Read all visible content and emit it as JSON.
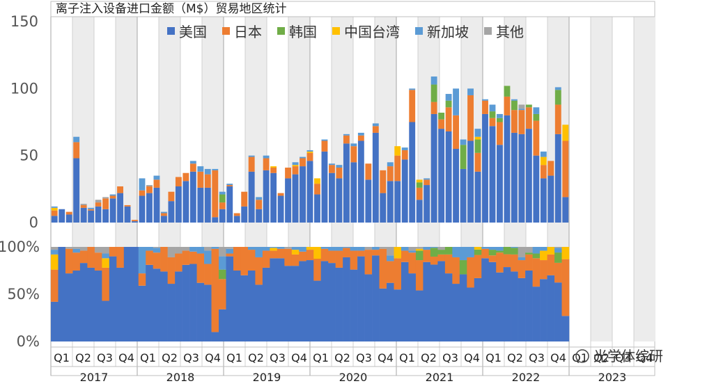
{
  "chart_data": {
    "type": "bar",
    "title": "离子注入设备进口金额（M$）贸易地区统计",
    "watermark": "光学体综研",
    "top_axis": {
      "ylim": [
        0,
        150
      ],
      "ticks": [
        "0",
        "50",
        "100",
        "150"
      ]
    },
    "bottom_axis": {
      "ylim": [
        0,
        100
      ],
      "ticks": [
        "0%",
        "50%",
        "100%"
      ]
    },
    "grid": true,
    "legend_position": "top",
    "quarters": [
      "Q1",
      "Q2",
      "Q3",
      "Q4"
    ],
    "years": [
      "2017",
      "2018",
      "2019",
      "2020",
      "2021",
      "2022",
      "2023"
    ],
    "series": [
      {
        "name": "美国",
        "color": "#4472C4",
        "values": [
          5,
          10,
          6,
          48,
          11,
          9,
          12,
          10,
          18,
          22,
          12,
          1,
          20,
          22,
          26,
          5,
          16,
          27,
          31,
          38,
          26,
          26,
          4,
          10,
          27,
          5,
          12,
          38,
          10,
          39,
          37,
          20,
          33,
          36,
          42,
          46,
          21,
          53,
          37,
          33,
          59,
          45,
          61,
          32,
          67,
          22,
          31,
          31,
          47,
          75,
          17,
          28,
          81,
          70,
          68,
          55,
          40,
          61,
          38,
          81,
          72,
          58,
          80,
          67,
          66,
          70,
          50,
          33,
          35,
          66,
          19
        ],
        "shares": [
          42,
          100,
          72,
          75,
          83,
          78,
          75,
          43,
          90,
          78,
          100,
          100,
          59,
          81,
          77,
          74,
          61,
          74,
          81,
          82,
          62,
          60,
          10,
          34,
          90,
          75,
          70,
          75,
          60,
          78,
          88,
          88,
          80,
          80,
          85,
          86,
          72,
          85,
          83,
          78,
          89,
          76,
          90,
          71,
          91,
          56,
          62,
          55,
          84,
          72,
          54,
          84,
          87,
          85,
          72,
          61,
          71,
          57,
          71,
          88,
          84,
          73,
          81,
          74,
          67,
          75,
          58,
          66,
          70,
          63,
          27
        ]
      },
      {
        "name": "日本",
        "color": "#ED7D31",
        "values": [
          4,
          0,
          2,
          12,
          2,
          1,
          3,
          8,
          2,
          5,
          1,
          1,
          4,
          5,
          6,
          2,
          7,
          7,
          6,
          6,
          12,
          10,
          35,
          5,
          1,
          2,
          11,
          11,
          7,
          9,
          4,
          2,
          8,
          6,
          6,
          6,
          8,
          8,
          6,
          8,
          6,
          12,
          4,
          12,
          5,
          17,
          11,
          19,
          7,
          24,
          9,
          4,
          9,
          7,
          18,
          25,
          0,
          34,
          14,
          10,
          6,
          17,
          14,
          17,
          18,
          16,
          26,
          10,
          11,
          22,
          42
        ],
        "shares": [
          34,
          0,
          26,
          19,
          13,
          22,
          19,
          35,
          10,
          22,
          0,
          0,
          13,
          15,
          17,
          26,
          28,
          19,
          15,
          13,
          31,
          22,
          88,
          32,
          3,
          25,
          30,
          22,
          29,
          18,
          8,
          10,
          18,
          12,
          10,
          11,
          26,
          13,
          13,
          18,
          10,
          20,
          6,
          26,
          6,
          42,
          23,
          33,
          12,
          22,
          32,
          13,
          9,
          7,
          20,
          28,
          0,
          32,
          26,
          10,
          7,
          21,
          14,
          18,
          19,
          17,
          30,
          20,
          22,
          21,
          60
        ]
      },
      {
        "name": "韩国",
        "color": "#70AD47",
        "values": [
          0,
          0,
          0,
          0,
          0,
          0,
          0,
          0,
          0,
          0,
          0,
          0,
          0,
          0,
          0,
          0,
          0,
          0,
          0,
          0,
          0,
          0,
          0,
          6,
          0,
          0,
          0,
          0,
          0,
          0,
          0,
          0,
          0,
          0,
          0,
          0,
          0,
          0,
          0,
          0,
          0,
          0,
          0,
          0,
          0,
          0,
          0,
          0,
          0,
          0,
          4,
          0,
          13,
          5,
          5,
          0,
          18,
          0,
          10,
          0,
          5,
          3,
          8,
          7,
          0,
          2,
          5,
          0,
          0,
          11,
          0
        ],
        "shares": [
          0,
          0,
          0,
          0,
          0,
          0,
          0,
          0,
          0,
          0,
          0,
          0,
          0,
          0,
          0,
          0,
          0,
          0,
          0,
          0,
          0,
          0,
          0,
          10,
          0,
          0,
          0,
          0,
          0,
          0,
          0,
          0,
          0,
          0,
          0,
          0,
          0,
          0,
          0,
          0,
          0,
          0,
          0,
          0,
          0,
          0,
          0,
          0,
          0,
          0,
          10,
          0,
          10,
          5,
          8,
          0,
          15,
          0,
          6,
          0,
          6,
          2,
          8,
          7,
          0,
          2,
          5,
          0,
          0,
          11,
          0
        ]
      },
      {
        "name": "中国台湾",
        "color": "#FFC000",
        "values": [
          2,
          0,
          0,
          0,
          0,
          0,
          0,
          0,
          0,
          0,
          0,
          0,
          0,
          0,
          0,
          0,
          0,
          0,
          0,
          0,
          0,
          0,
          0,
          0,
          0,
          0,
          0,
          0,
          0,
          0,
          1,
          0,
          0,
          1,
          0,
          1,
          4,
          0,
          0,
          0,
          0,
          0,
          0,
          0,
          0,
          0,
          0,
          7,
          0,
          0,
          2,
          0,
          0,
          0,
          0,
          0,
          0,
          0,
          2,
          0,
          0,
          0,
          0,
          0,
          0,
          0,
          0,
          6,
          0,
          0,
          12
        ],
        "shares": [
          16,
          0,
          0,
          0,
          0,
          0,
          0,
          10,
          0,
          0,
          0,
          0,
          0,
          0,
          0,
          0,
          0,
          0,
          0,
          0,
          0,
          0,
          0,
          0,
          0,
          0,
          0,
          0,
          0,
          0,
          3,
          0,
          0,
          5,
          0,
          3,
          14,
          0,
          0,
          0,
          0,
          0,
          0,
          0,
          0,
          0,
          0,
          12,
          0,
          0,
          2,
          0,
          0,
          0,
          0,
          0,
          0,
          0,
          3,
          0,
          0,
          0,
          0,
          0,
          0,
          0,
          0,
          10,
          8,
          0,
          13
        ]
      },
      {
        "name": "新加坡",
        "color": "#5B9BD5",
        "values": [
          1,
          0,
          0,
          4,
          0,
          1,
          0,
          0,
          1,
          0,
          0,
          0,
          9,
          0,
          3,
          1,
          0,
          0,
          0,
          2,
          4,
          4,
          1,
          2,
          1,
          0,
          0,
          1,
          2,
          2,
          0,
          0,
          0,
          2,
          1,
          1,
          0,
          1,
          1,
          2,
          1,
          2,
          2,
          0,
          2,
          0,
          3,
          0,
          2,
          1,
          0,
          1,
          6,
          0,
          5,
          20,
          4,
          5,
          6,
          1,
          5,
          3,
          0,
          1,
          1,
          0,
          5,
          4,
          0,
          2,
          0
        ],
        "shares": [
          5,
          0,
          0,
          4,
          0,
          0,
          0,
          5,
          0,
          0,
          0,
          0,
          28,
          4,
          5,
          0,
          0,
          0,
          0,
          5,
          7,
          14,
          2,
          14,
          5,
          0,
          0,
          3,
          11,
          4,
          1,
          2,
          0,
          3,
          5,
          0,
          0,
          2,
          4,
          4,
          1,
          4,
          4,
          0,
          3,
          0,
          6,
          0,
          4,
          2,
          0,
          3,
          1,
          0,
          0,
          11,
          14,
          11,
          0,
          2,
          3,
          4,
          0,
          1,
          3,
          0,
          7,
          4,
          0,
          5,
          0
        ]
      },
      {
        "name": "其他",
        "color": "#A5A5A5",
        "values": [
          0,
          0,
          0,
          0,
          1,
          0,
          2,
          1,
          0,
          0,
          0,
          0,
          0,
          1,
          0,
          0,
          0,
          0,
          0,
          0,
          0,
          0,
          0,
          0,
          0,
          0,
          0,
          0,
          0,
          0,
          0,
          0,
          0,
          0,
          0,
          0,
          0,
          0,
          0,
          0,
          0,
          0,
          0,
          0,
          0,
          0,
          0,
          0,
          0,
          0,
          0,
          0,
          0,
          0,
          0,
          0,
          0,
          0,
          0,
          0,
          0,
          0,
          0,
          0,
          3,
          0,
          0,
          0,
          0,
          0,
          0
        ],
        "shares": [
          3,
          0,
          2,
          2,
          4,
          0,
          6,
          7,
          0,
          0,
          0,
          0,
          0,
          0,
          1,
          0,
          11,
          7,
          4,
          0,
          0,
          4,
          0,
          10,
          2,
          0,
          0,
          0,
          0,
          0,
          0,
          0,
          2,
          0,
          0,
          0,
          0,
          0,
          0,
          0,
          0,
          0,
          0,
          3,
          0,
          2,
          9,
          0,
          0,
          4,
          2,
          0,
          0,
          3,
          0,
          0,
          0,
          0,
          0,
          0,
          0,
          0,
          0,
          0,
          11,
          6,
          0,
          0,
          0,
          1,
          0
        ]
      }
    ]
  }
}
